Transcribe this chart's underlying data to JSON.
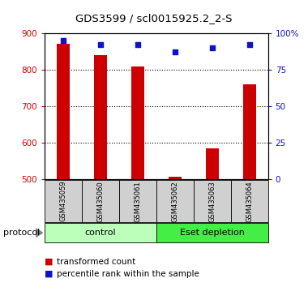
{
  "title": "GDS3599 / scl0015925.2_2-S",
  "samples": [
    "GSM435059",
    "GSM435060",
    "GSM435061",
    "GSM435062",
    "GSM435063",
    "GSM435064"
  ],
  "bar_values": [
    870,
    840,
    808,
    507,
    585,
    760
  ],
  "dot_values": [
    95,
    92,
    92,
    87,
    90,
    92
  ],
  "ylim_left": [
    500,
    900
  ],
  "ylim_right": [
    0,
    100
  ],
  "yticks_left": [
    500,
    600,
    700,
    800,
    900
  ],
  "yticks_right": [
    0,
    25,
    50,
    75,
    100
  ],
  "ytick_labels_right": [
    "0",
    "25",
    "50",
    "75",
    "100%"
  ],
  "bar_color": "#cc0000",
  "dot_color": "#1111cc",
  "groups": [
    {
      "label": "control",
      "indices": [
        0,
        1,
        2
      ],
      "color": "#bbffbb"
    },
    {
      "label": "Eset depletion",
      "indices": [
        3,
        4,
        5
      ],
      "color": "#44ee44"
    }
  ],
  "protocol_label": "protocol",
  "legend_bar_label": "transformed count",
  "legend_dot_label": "percentile rank within the sample",
  "sample_box_color": "#d0d0d0",
  "bar_width": 0.35
}
